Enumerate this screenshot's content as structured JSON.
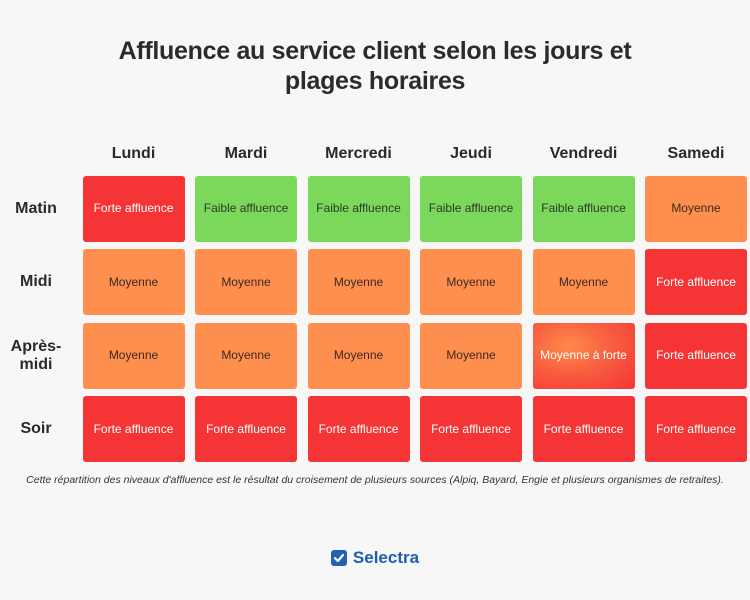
{
  "title": {
    "line1": "Affluence au service client selon les jours et",
    "line2": "plages horaires"
  },
  "chart_data": {
    "type": "heatmap",
    "columns": [
      "Lundi",
      "Mardi",
      "Mercredi",
      "Jeudi",
      "Vendredi",
      "Samedi"
    ],
    "rows": [
      "Matin",
      "Midi",
      "Après-midi",
      "Soir"
    ],
    "row_labels_display": [
      [
        "Matin"
      ],
      [
        "Midi"
      ],
      [
        "Après-",
        "midi"
      ],
      [
        "Soir"
      ]
    ],
    "cells": [
      [
        "Forte affluence",
        "Faible affluence",
        "Faible affluence",
        "Faible affluence",
        "Faible affluence",
        "Moyenne"
      ],
      [
        "Moyenne",
        "Moyenne",
        "Moyenne",
        "Moyenne",
        "Moyenne",
        "Forte affluence"
      ],
      [
        "Moyenne",
        "Moyenne",
        "Moyenne",
        "Moyenne",
        "Moyenne à forte",
        "Forte affluence"
      ],
      [
        "Forte affluence",
        "Forte affluence",
        "Forte affluence",
        "Forte affluence",
        "Forte affluence",
        "Forte affluence"
      ]
    ],
    "levels": [
      [
        "forte",
        "faible",
        "faible",
        "faible",
        "faible",
        "moyenne"
      ],
      [
        "moyenne",
        "moyenne",
        "moyenne",
        "moyenne",
        "moyenne",
        "forte"
      ],
      [
        "moyenne",
        "moyenne",
        "moyenne",
        "moyenne",
        "moyenne-forte",
        "forte"
      ],
      [
        "forte",
        "forte",
        "forte",
        "forte",
        "forte",
        "forte"
      ]
    ],
    "colors": {
      "forte": "#f53436",
      "faible": "#7bd85a",
      "moyenne": "#ff8f4e",
      "moyenne-forte": "#f85a3e"
    }
  },
  "note": "Cette répartition des niveaux d'affluence est le résultat du croisement de plusieurs sources (Alpiq, Bayard, Engie et plusieurs organismes de retraites).",
  "brand": {
    "name": "Selectra",
    "icon": "checkmark-icon",
    "color": "#1f63b5"
  }
}
